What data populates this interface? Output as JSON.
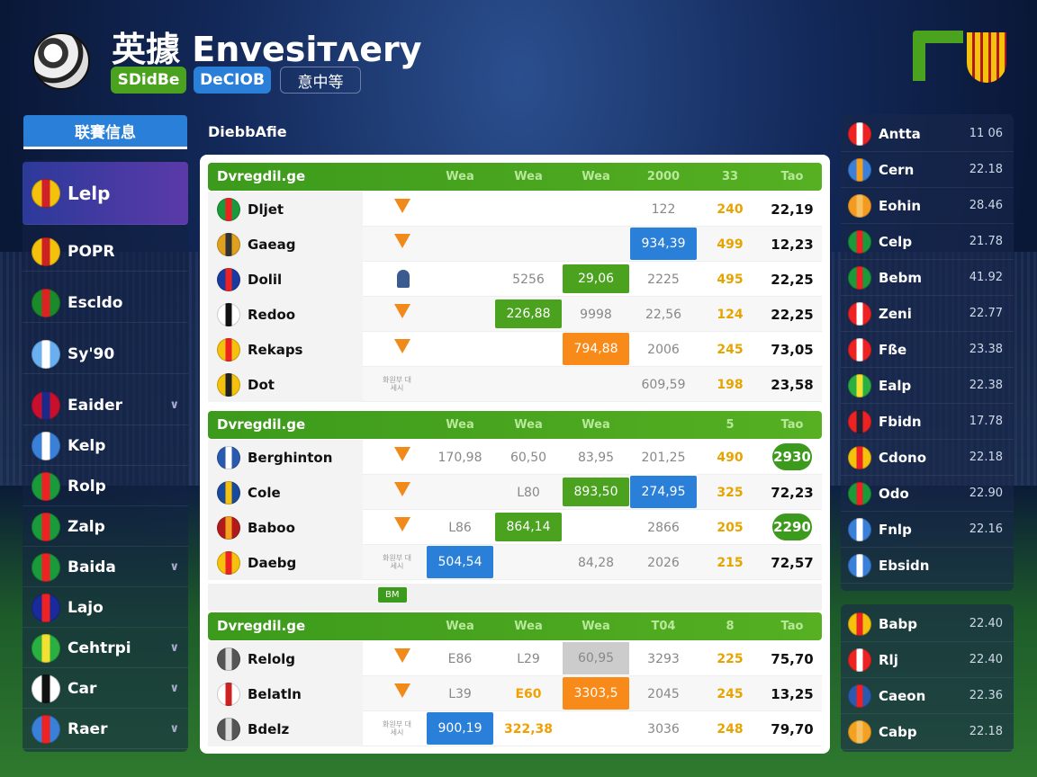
{
  "header": {
    "title": "英據 Envesiᴛᴧery",
    "badges": [
      {
        "label": "SDidBe",
        "color": "#4aa21e"
      },
      {
        "label": "DeCIOB",
        "color": "#2a7fd8"
      },
      {
        "label": "意中等",
        "color": "transparent"
      }
    ]
  },
  "tabs": {
    "active": "联賽信息",
    "secondary": "DiebbAfie"
  },
  "sidebar": {
    "items": [
      {
        "label": "Lelp",
        "icon": "crest-icon",
        "colors": [
          "#f4c20d",
          "#d0202a"
        ],
        "selected": true
      },
      {
        "label": "POPR",
        "icon": "crest-icon",
        "colors": [
          "#f4c20d",
          "#c22"
        ]
      },
      {
        "label": "Escldo",
        "icon": "portugal-flag-icon",
        "colors": [
          "#1a8a2a",
          "#d22"
        ]
      },
      {
        "label": "Sy'90",
        "icon": "argentina-flag-icon",
        "colors": [
          "#6ab0f0",
          "#fff"
        ]
      },
      {
        "label": "Eaider",
        "icon": "uk-flag-icon",
        "colors": [
          "#c8102e",
          "#1a2a8a"
        ],
        "chevron": true
      },
      {
        "label": "Kelp",
        "icon": "shield-icon",
        "colors": [
          "#3a7fd8",
          "#fff"
        ]
      },
      {
        "label": "Rolp",
        "icon": "italy-flag-icon",
        "colors": [
          "#1a9a3a",
          "#e22"
        ]
      },
      {
        "label": "Zalp",
        "icon": "italy-flag-icon",
        "colors": [
          "#1a9a3a",
          "#e22"
        ]
      },
      {
        "label": "Baida",
        "icon": "italy-flag-icon",
        "colors": [
          "#1a9a3a",
          "#e22"
        ],
        "chevron": true
      },
      {
        "label": "Lajo",
        "icon": "club-icon",
        "colors": [
          "#1a2a9a",
          "#e22"
        ]
      },
      {
        "label": "Cehtrpi",
        "icon": "club-icon",
        "colors": [
          "#2ab040",
          "#f4e030"
        ],
        "chevron": true
      },
      {
        "label": "Car",
        "icon": "ball-icon",
        "colors": [
          "#fff",
          "#111"
        ],
        "chevron": true
      },
      {
        "label": "Raer",
        "icon": "shield-icon",
        "colors": [
          "#3a7fd8",
          "#e22"
        ],
        "chevron": true
      }
    ]
  },
  "sections": [
    {
      "title": "Dvregdil.ge",
      "columns": [
        "Wea",
        "Wea",
        "Wea",
        "2000",
        "33",
        "Tao"
      ],
      "rows": [
        {
          "name": "Dljet",
          "icon": "italy-flag-icon",
          "colors": [
            "#1a9a3a",
            "#e22"
          ],
          "badge": "trophy",
          "cells": [
            [
              "",
              ""
            ],
            [
              "",
              ""
            ],
            [
              "",
              ""
            ],
            [
              "122",
              ""
            ],
            [
              "240",
              ""
            ],
            [
              "22,19",
              ""
            ]
          ]
        },
        {
          "name": "Gaeag",
          "icon": "player-icon",
          "colors": [
            "#e0a020",
            "#333"
          ],
          "badge": "trophy",
          "cells": [
            [
              "",
              ""
            ],
            [
              "",
              ""
            ],
            [
              "",
              ""
            ],
            [
              "934,39",
              "blue"
            ],
            [
              "499",
              ""
            ],
            [
              "12,23",
              ""
            ]
          ]
        },
        {
          "name": "Dolil",
          "icon": "shield-icon",
          "colors": [
            "#1a3aa0",
            "#e22"
          ],
          "badge": "person",
          "cells": [
            [
              "",
              ""
            ],
            [
              "5256",
              ""
            ],
            [
              "29,06",
              "green"
            ],
            [
              "2225",
              ""
            ],
            [
              "495",
              ""
            ],
            [
              "22,25",
              ""
            ]
          ]
        },
        {
          "name": "Redoo",
          "icon": "ball-icon",
          "colors": [
            "#fff",
            "#111"
          ],
          "badge": "trophy",
          "cells": [
            [
              "",
              ""
            ],
            [
              "226,88",
              "green"
            ],
            [
              "9998",
              ""
            ],
            [
              "22,56",
              ""
            ],
            [
              "124",
              ""
            ],
            [
              "22,25",
              ""
            ]
          ]
        },
        {
          "name": "Rekaps",
          "icon": "crest-icon",
          "colors": [
            "#f4c20d",
            "#e22"
          ],
          "badge": "trophy",
          "cells": [
            [
              "",
              ""
            ],
            [
              "",
              ""
            ],
            [
              "794,88",
              "orange"
            ],
            [
              "2006",
              ""
            ],
            [
              "245",
              ""
            ],
            [
              "73,05",
              ""
            ]
          ]
        },
        {
          "name": "Dot",
          "icon": "club-icon",
          "colors": [
            "#f4c20d",
            "#222"
          ],
          "badge": "text",
          "badge_text": "화원부 대세시",
          "cells": [
            [
              "",
              ""
            ],
            [
              "",
              ""
            ],
            [
              "",
              ""
            ],
            [
              "609,59",
              ""
            ],
            [
              "198",
              ""
            ],
            [
              "23,58",
              ""
            ]
          ]
        }
      ]
    },
    {
      "title": "Dvregdil.ge",
      "columns": [
        "Wea",
        "Wea",
        "Wea",
        "",
        "5",
        "Tao"
      ],
      "rows": [
        {
          "name": "Berghinton",
          "icon": "player-icon",
          "colors": [
            "#2a5ab0",
            "#fff"
          ],
          "badge": "trophy",
          "cells": [
            [
              "170,98",
              ""
            ],
            [
              "60,50",
              ""
            ],
            [
              "83,95",
              ""
            ],
            [
              "201,25",
              "white"
            ],
            [
              "490",
              ""
            ],
            [
              "2930",
              "pill"
            ]
          ]
        },
        {
          "name": "Cole",
          "icon": "shield-icon",
          "colors": [
            "#1a4a9a",
            "#f4c20d"
          ],
          "badge": "trophy",
          "cells": [
            [
              "",
              ""
            ],
            [
              "L80",
              ""
            ],
            [
              "893,50",
              "green"
            ],
            [
              "274,95",
              "blue"
            ],
            [
              "325",
              ""
            ],
            [
              "72,23",
              ""
            ]
          ]
        },
        {
          "name": "Baboo",
          "icon": "club-icon",
          "colors": [
            "#b01a1a",
            "#f4a020"
          ],
          "badge": "trophy",
          "cells": [
            [
              "L86",
              ""
            ],
            [
              "864,14",
              "green"
            ],
            [
              "",
              ""
            ],
            [
              "2866",
              ""
            ],
            [
              "205",
              ""
            ],
            [
              "2290",
              "pill"
            ]
          ]
        },
        {
          "name": "Daebg",
          "icon": "club-icon",
          "colors": [
            "#f4c20d",
            "#e22"
          ],
          "badge": "text",
          "badge_text": "화원부 대세시",
          "cells": [
            [
              "504,54",
              "blue"
            ],
            [
              "",
              ""
            ],
            [
              "84,28",
              ""
            ],
            [
              "2026",
              ""
            ],
            [
              "215",
              ""
            ],
            [
              "72,57",
              ""
            ]
          ]
        }
      ],
      "extra": "BM"
    },
    {
      "title": "Dvregdil.ge",
      "columns": [
        "Wea",
        "Wea",
        "Wea",
        "T04",
        "8",
        "Tao"
      ],
      "rows": [
        {
          "name": "Relolg",
          "icon": "player-icon",
          "colors": [
            "#555",
            "#ddd"
          ],
          "badge": "trophy",
          "cells": [
            [
              "E86",
              ""
            ],
            [
              "L29",
              ""
            ],
            [
              "60,95",
              "gray"
            ],
            [
              "3293",
              ""
            ],
            [
              "225",
              ""
            ],
            [
              "75,70",
              ""
            ]
          ]
        },
        {
          "name": "Belatln",
          "icon": "club-icon",
          "colors": [
            "#fff",
            "#c22"
          ],
          "badge": "trophy",
          "cells": [
            [
              "L39",
              ""
            ],
            [
              "E60",
              "otext"
            ],
            [
              "3303,5",
              "orange"
            ],
            [
              "2045",
              ""
            ],
            [
              "245",
              ""
            ],
            [
              "13,25",
              ""
            ]
          ]
        },
        {
          "name": "Bdelz",
          "icon": "player-icon",
          "colors": [
            "#555",
            "#ddd"
          ],
          "badge": "text",
          "badge_text": "화원부 대세시",
          "cells": [
            [
              "900,19",
              "blue"
            ],
            [
              "322,38",
              "otext"
            ],
            [
              "",
              ""
            ],
            [
              "3036",
              ""
            ],
            [
              "248",
              ""
            ],
            [
              "79,70",
              ""
            ]
          ]
        }
      ]
    }
  ],
  "right_panel": {
    "items": [
      {
        "label": "Antta",
        "value": "11 06",
        "colors": [
          "#e22",
          "#fff"
        ]
      },
      {
        "label": "Cern",
        "value": "22.18",
        "colors": [
          "#3a7fd8",
          "#f4a020"
        ]
      },
      {
        "label": "Eohin",
        "value": "28.46",
        "colors": [
          "#f49a20",
          "#f4c060"
        ]
      },
      {
        "label": "Celp",
        "value": "21.78",
        "colors": [
          "#1a9a3a",
          "#e22"
        ]
      },
      {
        "label": "Bebm",
        "value": "41.92",
        "colors": [
          "#1a9a3a",
          "#e22"
        ]
      },
      {
        "label": "Zeni",
        "value": "22.77",
        "colors": [
          "#e22",
          "#fff"
        ]
      },
      {
        "label": "Fße",
        "value": "23.38",
        "colors": [
          "#e22",
          "#fff"
        ]
      },
      {
        "label": "Ealp",
        "value": "22.38",
        "colors": [
          "#2ab040",
          "#f4e030"
        ]
      },
      {
        "label": "Fbidn",
        "value": "17.78",
        "colors": [
          "#e22",
          "#223"
        ]
      },
      {
        "label": "Cdono",
        "value": "22.18",
        "colors": [
          "#f4c20d",
          "#e22"
        ]
      },
      {
        "label": "Odo",
        "value": "22.90",
        "colors": [
          "#1a9a3a",
          "#e22"
        ]
      },
      {
        "label": "Fnlp",
        "value": "22.16",
        "colors": [
          "#3a7fd8",
          "#fff"
        ]
      },
      {
        "label": "Ebsidn",
        "value": "",
        "colors": [
          "#3a7fd8",
          "#fff"
        ]
      }
    ],
    "items2": [
      {
        "label": "Babp",
        "value": "22.40",
        "colors": [
          "#f4c20d",
          "#e22"
        ]
      },
      {
        "label": "Rlj",
        "value": "22.40",
        "colors": [
          "#e22",
          "#fff"
        ]
      },
      {
        "label": "Caeon",
        "value": "22.36",
        "colors": [
          "#2a5ab0",
          "#e22"
        ]
      },
      {
        "label": "Cabp",
        "value": "22.18",
        "colors": [
          "#f4a020",
          "#f4c060"
        ]
      }
    ]
  },
  "colors": {
    "accent_green": "#4aa21e",
    "accent_blue": "#2a7fd8",
    "accent_orange": "#f88a1a"
  }
}
